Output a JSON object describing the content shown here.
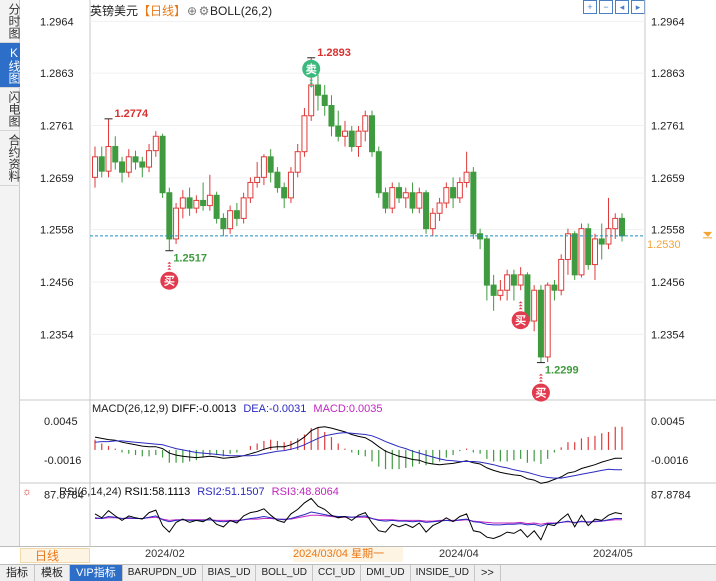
{
  "side_tabs": [
    "分时图",
    "K线图",
    "闪电图",
    "合约资料"
  ],
  "side_active": 1,
  "header": {
    "title": "英镑美元",
    "period": "【日线】",
    "indicator": "BOLL(26,2)"
  },
  "top_icons": [
    "zoom-in-icon",
    "zoom-out-icon",
    "move-left-icon",
    "move-right-icon"
  ],
  "colors": {
    "up": "#e03a3a",
    "down": "#3f9b3f",
    "bg": "#ffffff",
    "grid": "#eeeeee",
    "price_line": "#1e8fc0",
    "price_tag": "#f3a533",
    "macd_line": "#000000",
    "dea_line": "#2a2ac0",
    "diff_color": "#000000",
    "dea_color": "#2a2ac0",
    "macd_color": "#c026c0",
    "rsi1": "#000000",
    "rsi2": "#2a2ac0",
    "rsi3": "#c026c0"
  },
  "chart_data": [
    {
      "type": "candlestick",
      "title": "英镑美元【日线】",
      "ylim": [
        1.223,
        1.299
      ],
      "y_ticks": [
        "1.2964",
        "1.2863",
        "1.2761",
        "1.2659",
        "1.2558",
        "1.2456",
        "1.2354"
      ],
      "current_price": "1.2546",
      "tag_price": "1.2530",
      "annotations": [
        {
          "text": "1.2774"
        },
        {
          "text": "1.2893"
        },
        {
          "text": "1.2517"
        },
        {
          "text": "1.2299"
        }
      ],
      "signals": [
        {
          "label": "卖",
          "type": "sell"
        },
        {
          "label": "买",
          "type": "buy"
        },
        {
          "label": "买",
          "type": "buy"
        },
        {
          "label": "买",
          "type": "buy"
        }
      ],
      "candles": [
        [
          1.266,
          1.27,
          1.264,
          1.272
        ],
        [
          1.27,
          1.2672,
          1.266,
          1.272
        ],
        [
          1.2672,
          1.272,
          1.266,
          1.2774
        ],
        [
          1.272,
          1.269,
          1.2675,
          1.274
        ],
        [
          1.269,
          1.267,
          1.265,
          1.27
        ],
        [
          1.267,
          1.27,
          1.266,
          1.2715
        ],
        [
          1.27,
          1.269,
          1.2675,
          1.2712
        ],
        [
          1.269,
          1.268,
          1.266,
          1.27
        ],
        [
          1.268,
          1.2712,
          1.267,
          1.2725
        ],
        [
          1.2712,
          1.274,
          1.27,
          1.275
        ],
        [
          1.274,
          1.263,
          1.262,
          1.2745
        ],
        [
          1.263,
          1.254,
          1.2517,
          1.264
        ],
        [
          1.254,
          1.26,
          1.253,
          1.261
        ],
        [
          1.26,
          1.262,
          1.258,
          1.2635
        ],
        [
          1.262,
          1.26,
          1.2585,
          1.264
        ],
        [
          1.26,
          1.2615,
          1.259,
          1.2625
        ],
        [
          1.2615,
          1.2605,
          1.2595,
          1.265
        ],
        [
          1.2605,
          1.2625,
          1.2595,
          1.2665
        ],
        [
          1.2625,
          1.258,
          1.257,
          1.2632
        ],
        [
          1.258,
          1.256,
          1.2545,
          1.259
        ],
        [
          1.256,
          1.2595,
          1.255,
          1.2605
        ],
        [
          1.2595,
          1.258,
          1.2565,
          1.261
        ],
        [
          1.258,
          1.262,
          1.257,
          1.263
        ],
        [
          1.262,
          1.265,
          1.261,
          1.266
        ],
        [
          1.265,
          1.266,
          1.264,
          1.269
        ],
        [
          1.266,
          1.27,
          1.2645,
          1.2705
        ],
        [
          1.27,
          1.267,
          1.265,
          1.2715
        ],
        [
          1.267,
          1.264,
          1.263,
          1.268
        ],
        [
          1.264,
          1.262,
          1.26,
          1.265
        ],
        [
          1.262,
          1.267,
          1.261,
          1.268
        ],
        [
          1.267,
          1.271,
          1.266,
          1.2725
        ],
        [
          1.271,
          1.278,
          1.27,
          1.2795
        ],
        [
          1.278,
          1.284,
          1.277,
          1.2893
        ],
        [
          1.284,
          1.282,
          1.279,
          1.286
        ],
        [
          1.282,
          1.28,
          1.278,
          1.284
        ],
        [
          1.28,
          1.276,
          1.274,
          1.282
        ],
        [
          1.276,
          1.274,
          1.273,
          1.279
        ],
        [
          1.274,
          1.275,
          1.272,
          1.277
        ],
        [
          1.275,
          1.272,
          1.271,
          1.276
        ],
        [
          1.272,
          1.275,
          1.27,
          1.276
        ],
        [
          1.275,
          1.278,
          1.273,
          1.279
        ],
        [
          1.278,
          1.271,
          1.27,
          1.279
        ],
        [
          1.271,
          1.263,
          1.262,
          1.272
        ],
        [
          1.263,
          1.26,
          1.259,
          1.264
        ],
        [
          1.26,
          1.264,
          1.259,
          1.265
        ],
        [
          1.264,
          1.262,
          1.261,
          1.265
        ],
        [
          1.262,
          1.263,
          1.26,
          1.264
        ],
        [
          1.263,
          1.26,
          1.259,
          1.265
        ],
        [
          1.26,
          1.263,
          1.259,
          1.264
        ],
        [
          1.263,
          1.256,
          1.255,
          1.2635
        ],
        [
          1.256,
          1.259,
          1.2545,
          1.26
        ],
        [
          1.259,
          1.261,
          1.2575,
          1.262
        ],
        [
          1.261,
          1.264,
          1.26,
          1.265
        ],
        [
          1.264,
          1.262,
          1.26,
          1.266
        ],
        [
          1.262,
          1.265,
          1.261,
          1.266
        ],
        [
          1.265,
          1.267,
          1.264,
          1.271
        ],
        [
          1.267,
          1.255,
          1.254,
          1.268
        ],
        [
          1.255,
          1.254,
          1.252,
          1.256
        ],
        [
          1.254,
          1.245,
          1.242,
          1.2545
        ],
        [
          1.245,
          1.243,
          1.24,
          1.247
        ],
        [
          1.243,
          1.244,
          1.242,
          1.246
        ],
        [
          1.244,
          1.247,
          1.242,
          1.248
        ],
        [
          1.247,
          1.245,
          1.242,
          1.248
        ],
        [
          1.245,
          1.247,
          1.244,
          1.2485
        ],
        [
          1.247,
          1.238,
          1.237,
          1.2475
        ],
        [
          1.238,
          1.244,
          1.236,
          1.245
        ],
        [
          1.244,
          1.231,
          1.2299,
          1.245
        ],
        [
          1.231,
          1.245,
          1.23,
          1.2455
        ],
        [
          1.245,
          1.244,
          1.242,
          1.246
        ],
        [
          1.244,
          1.25,
          1.243,
          1.251
        ],
        [
          1.25,
          1.255,
          1.247,
          1.256
        ],
        [
          1.255,
          1.247,
          1.246,
          1.2555
        ],
        [
          1.247,
          1.256,
          1.2465,
          1.257
        ],
        [
          1.256,
          1.249,
          1.248,
          1.257
        ],
        [
          1.249,
          1.254,
          1.246,
          1.255
        ],
        [
          1.254,
          1.253,
          1.25,
          1.257
        ],
        [
          1.253,
          1.256,
          1.252,
          1.262
        ],
        [
          1.256,
          1.258,
          1.254,
          1.259
        ],
        [
          1.258,
          1.2546,
          1.2535,
          1.259
        ]
      ]
    },
    {
      "type": "bar+line",
      "name": "MACD(26,12,9)",
      "legend": {
        "diff": "DIFF:-0.0013",
        "dea": "DEA:-0.0031",
        "macd": "MACD:0.0035"
      },
      "y_ticks": [
        "0.0045",
        "-0.0016"
      ],
      "ylim": [
        -0.005,
        0.007
      ],
      "diff": [
        0.002,
        0.0018,
        0.0016,
        0.0015,
        0.0012,
        0.001,
        0.0008,
        0.0006,
        0.0005,
        0.0005,
        0.0002,
        -0.0005,
        -0.0008,
        -0.001,
        -0.0011,
        -0.0012,
        -0.0011,
        -0.001,
        -0.0011,
        -0.0013,
        -0.0012,
        -0.0011,
        -0.0009,
        -0.0006,
        -0.0003,
        0.0001,
        0.0004,
        0.0005,
        0.0005,
        0.0008,
        0.0013,
        0.002,
        0.003,
        0.0035,
        0.0036,
        0.0034,
        0.0031,
        0.0028,
        0.0024,
        0.0021,
        0.0019,
        0.0013,
        0.0005,
        -0.0002,
        -0.0006,
        -0.001,
        -0.0012,
        -0.0015,
        -0.0016,
        -0.002,
        -0.0022,
        -0.0023,
        -0.0022,
        -0.0021,
        -0.0019,
        -0.0017,
        -0.002,
        -0.0022,
        -0.0028,
        -0.0032,
        -0.0035,
        -0.0037,
        -0.0039,
        -0.004,
        -0.0045,
        -0.0047,
        -0.0052,
        -0.005,
        -0.0046,
        -0.0042,
        -0.0036,
        -0.0034,
        -0.0029,
        -0.0026,
        -0.0023,
        -0.0019,
        -0.0016,
        -0.0013,
        -0.0013
      ],
      "dea": [
        0.0012,
        0.0013,
        0.0013,
        0.0014,
        0.0014,
        0.0013,
        0.0012,
        0.0011,
        0.001,
        0.0009,
        0.0008,
        0.0005,
        0.0002,
        0.0,
        -0.0002,
        -0.0004,
        -0.0005,
        -0.0006,
        -0.0007,
        -0.0008,
        -0.0009,
        -0.0009,
        -0.0009,
        -0.0009,
        -0.0008,
        -0.0006,
        -0.0004,
        -0.0002,
        -0.0001,
        0.0001,
        0.0004,
        0.0008,
        0.0013,
        0.0018,
        0.0022,
        0.0024,
        0.0026,
        0.0027,
        0.0026,
        0.0025,
        0.0024,
        0.0022,
        0.0018,
        0.0013,
        0.0009,
        0.0005,
        0.0002,
        -0.0002,
        -0.0005,
        -0.0008,
        -0.0011,
        -0.0014,
        -0.0016,
        -0.0017,
        -0.0018,
        -0.0018,
        -0.0018,
        -0.0019,
        -0.0021,
        -0.0023,
        -0.0026,
        -0.0028,
        -0.0031,
        -0.0033,
        -0.0035,
        -0.0038,
        -0.0041,
        -0.0043,
        -0.0044,
        -0.0044,
        -0.0042,
        -0.004,
        -0.0038,
        -0.0036,
        -0.0034,
        -0.0032,
        -0.003,
        -0.0031,
        -0.0031
      ]
    },
    {
      "type": "line",
      "name": "RSI(6,14,24)",
      "legend": {
        "rsi1": "RSI1:58.1113",
        "rsi2": "RSI2:51.1507",
        "rsi3": "RSI3:48.8064"
      },
      "y_ticks": [
        "87.8784"
      ],
      "ylim": [
        10,
        95
      ],
      "rsi1": [
        58,
        52,
        63,
        55,
        48,
        55,
        52,
        50,
        60,
        64,
        40,
        30,
        45,
        50,
        45,
        48,
        46,
        52,
        42,
        38,
        48,
        44,
        55,
        60,
        62,
        66,
        56,
        48,
        45,
        58,
        65,
        75,
        82,
        70,
        65,
        56,
        52,
        54,
        48,
        56,
        60,
        44,
        32,
        30,
        42,
        38,
        42,
        37,
        44,
        30,
        40,
        45,
        52,
        46,
        54,
        58,
        32,
        30,
        22,
        20,
        24,
        30,
        28,
        34,
        22,
        32,
        18,
        42,
        40,
        50,
        58,
        38,
        56,
        40,
        50,
        48,
        56,
        60,
        58
      ],
      "rsi2": [
        52,
        51,
        54,
        53,
        51,
        52,
        51,
        51,
        53,
        55,
        49,
        46,
        48,
        49,
        48,
        48,
        48,
        49,
        47,
        46,
        47,
        47,
        49,
        51,
        52,
        54,
        52,
        50,
        49,
        51,
        54,
        57,
        61,
        59,
        57,
        55,
        54,
        54,
        53,
        54,
        55,
        51,
        48,
        47,
        48,
        47,
        47,
        46,
        47,
        45,
        46,
        47,
        48,
        47,
        49,
        50,
        46,
        45,
        42,
        41,
        41,
        42,
        42,
        43,
        41,
        42,
        39,
        43,
        43,
        45,
        47,
        44,
        47,
        45,
        47,
        47,
        49,
        51,
        51
      ],
      "rsi3": [
        51,
        51,
        52,
        52,
        51,
        51,
        51,
        51,
        52,
        53,
        50,
        48,
        49,
        49,
        49,
        49,
        49,
        49,
        48,
        48,
        48,
        48,
        49,
        50,
        50,
        51,
        51,
        50,
        50,
        50,
        52,
        54,
        56,
        56,
        55,
        54,
        53,
        53,
        53,
        53,
        53,
        51,
        49,
        49,
        49,
        48,
        48,
        48,
        48,
        47,
        47,
        48,
        48,
        48,
        48,
        49,
        47,
        46,
        45,
        44,
        44,
        44,
        44,
        45,
        43,
        44,
        42,
        44,
        44,
        45,
        46,
        45,
        46,
        46,
        46,
        47,
        48,
        49,
        49
      ]
    }
  ],
  "date_labels": [
    "2024/02",
    "2024/04",
    "2024/05"
  ],
  "date_highlight": "2024/03/04 星期一",
  "period_label": "日线",
  "tabbar": [
    "指标",
    "模板",
    "VIP指标",
    "BARUPDN_UD",
    "BIAS_UD",
    "BOLL_UD",
    "CCI_UD",
    "DMI_UD",
    "INSIDE_UD",
    ">>"
  ],
  "tab_active": 2
}
